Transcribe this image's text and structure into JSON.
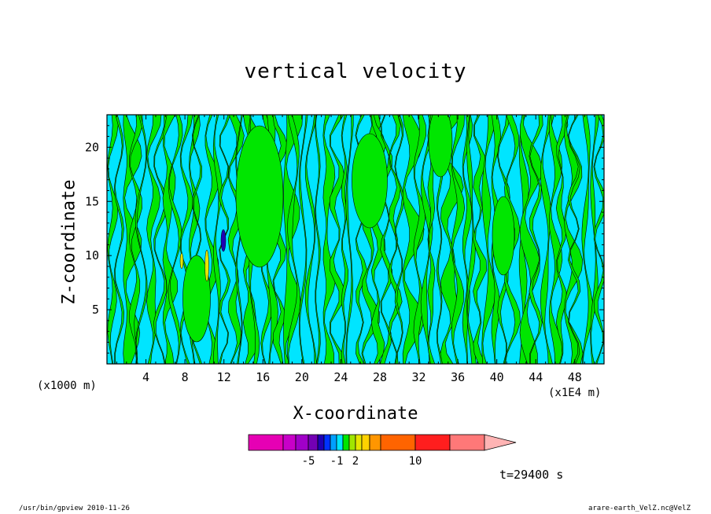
{
  "chart_data": {
    "type": "heatmap",
    "title": "vertical velocity",
    "xlabel": "X-coordinate",
    "ylabel": "Z-coordinate",
    "x_unit_left": "(x1000 m)",
    "x_unit_right": "(x1E4 m)",
    "xlim": [
      0,
      51
    ],
    "ylim": [
      0,
      23
    ],
    "x_ticks": [
      4,
      8,
      12,
      16,
      20,
      24,
      28,
      32,
      36,
      40,
      44,
      48
    ],
    "x_tick_labels": [
      "4",
      "8",
      "12",
      "16",
      "20",
      "24",
      "28",
      "32",
      "36",
      "40",
      "44",
      "48"
    ],
    "y_ticks": [
      5,
      10,
      15,
      20
    ],
    "y_tick_labels": [
      "5",
      "10",
      "15",
      "20"
    ],
    "dominant_fill_colors": {
      "negative_small": "#00e5ff",
      "positive_small": "#00e600"
    },
    "colorbar": {
      "colors": [
        "#e600b4",
        "#c800c8",
        "#a000c8",
        "#7300b4",
        "#1e00b4",
        "#0032ff",
        "#00a0ff",
        "#00e5ff",
        "#00e600",
        "#a0e600",
        "#e6e600",
        "#ffd200",
        "#ff9600",
        "#ff6400",
        "#ff1e1e",
        "#ff7878",
        "#ffb4b4"
      ],
      "tick_labels": [
        "-5",
        "-1",
        "2",
        "10"
      ]
    },
    "time_label": "t=29400 s"
  },
  "footer": {
    "left": "/usr/bin/gpview   2010-11-26",
    "right": "arare-earth_VelZ.nc@VelZ"
  }
}
